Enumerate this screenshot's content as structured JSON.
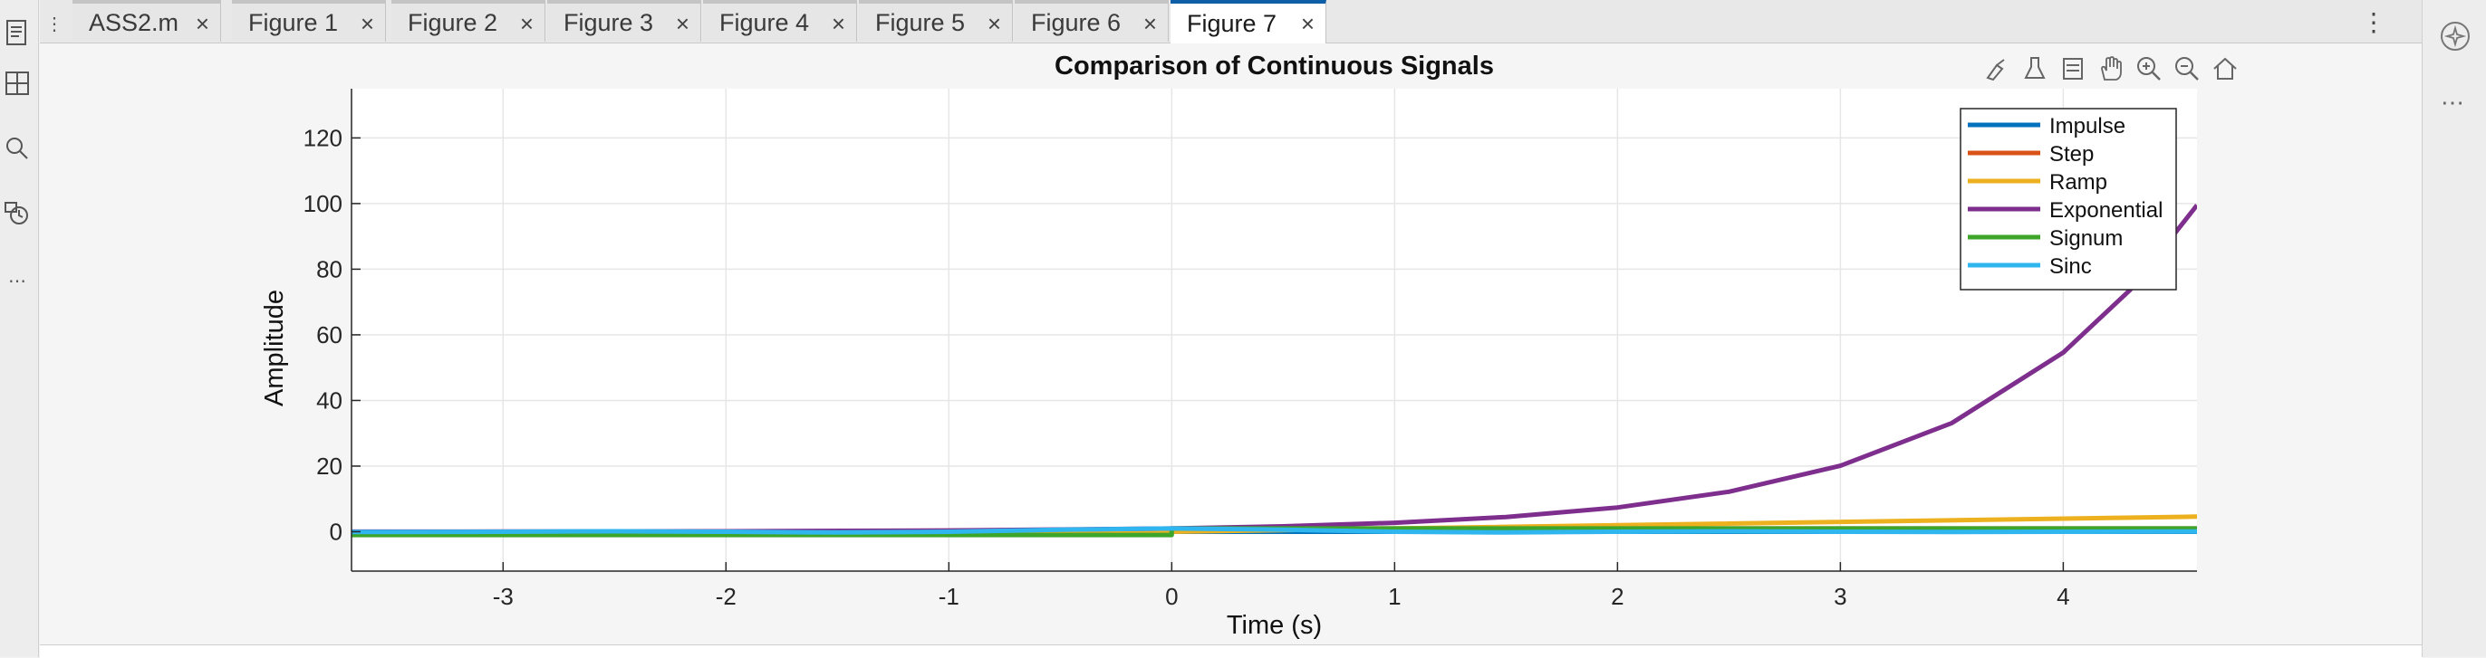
{
  "tabs": [
    {
      "label": "ASS2.m",
      "active": false
    },
    {
      "label": "Figure 1",
      "active": false
    },
    {
      "label": "Figure 2",
      "active": false
    },
    {
      "label": "Figure 3",
      "active": false
    },
    {
      "label": "Figure 4",
      "active": false
    },
    {
      "label": "Figure 5",
      "active": false
    },
    {
      "label": "Figure 6",
      "active": false
    },
    {
      "label": "Figure 7",
      "active": true
    }
  ],
  "tab_close_glyph": "×",
  "tab_menu_glyph": "⋮",
  "axes_toolbar": [
    "brush-icon",
    "data-tips-icon",
    "insert-legend-icon",
    "pan-icon",
    "zoom-in-icon",
    "zoom-out-icon",
    "home-icon"
  ],
  "chart_data": {
    "type": "line",
    "title": "Comparison of Continuous Signals",
    "xlabel": "Time (s)",
    "ylabel": "Amplitude",
    "xlim": [
      -3.68,
      4.6
    ],
    "ylim": [
      -12,
      135
    ],
    "xticks": [
      -3,
      -2,
      -1,
      0,
      1,
      2,
      3,
      4
    ],
    "yticks": [
      0,
      20,
      40,
      60,
      80,
      100,
      120
    ],
    "grid": true,
    "legend_position": "top-right",
    "series": [
      {
        "name": "Impulse",
        "color": "#0072bd",
        "x": [
          -3.68,
          4.6
        ],
        "y": [
          0,
          0
        ]
      },
      {
        "name": "Step",
        "color": "#d95319",
        "x": [
          -3.68,
          0,
          0,
          4.6
        ],
        "y": [
          0,
          0,
          1,
          1
        ]
      },
      {
        "name": "Ramp",
        "color": "#edb120",
        "x": [
          -3.68,
          0,
          4.6
        ],
        "y": [
          0,
          0,
          4.6
        ]
      },
      {
        "name": "Exponential",
        "color": "#7e2f8e",
        "x": [
          -3.68,
          -3,
          -2,
          -1,
          0,
          0.5,
          1,
          1.5,
          2,
          2.5,
          3,
          3.5,
          4,
          4.3,
          4.6
        ],
        "y": [
          0.03,
          0.05,
          0.14,
          0.37,
          1,
          1.65,
          2.72,
          4.48,
          7.39,
          12.18,
          20.09,
          33.12,
          54.6,
          73.7,
          99.5
        ]
      },
      {
        "name": "Signum",
        "color": "#3ca52a",
        "x": [
          -3.68,
          0,
          0,
          4.6
        ],
        "y": [
          -1,
          -1,
          1,
          1
        ]
      },
      {
        "name": "Sinc",
        "color": "#2fb6ef",
        "x": [
          -3.68,
          -3.5,
          -3,
          -2.5,
          -2,
          -1.5,
          -1,
          -0.5,
          0,
          0.5,
          1,
          1.5,
          2,
          2.5,
          3,
          3.5,
          4,
          4.5,
          4.6
        ],
        "y": [
          -0.05,
          -0.09,
          0,
          0.13,
          0,
          -0.21,
          0,
          0.64,
          1,
          0.64,
          0,
          -0.21,
          0,
          0.13,
          0,
          -0.09,
          0,
          0.07,
          0.05
        ]
      }
    ]
  }
}
